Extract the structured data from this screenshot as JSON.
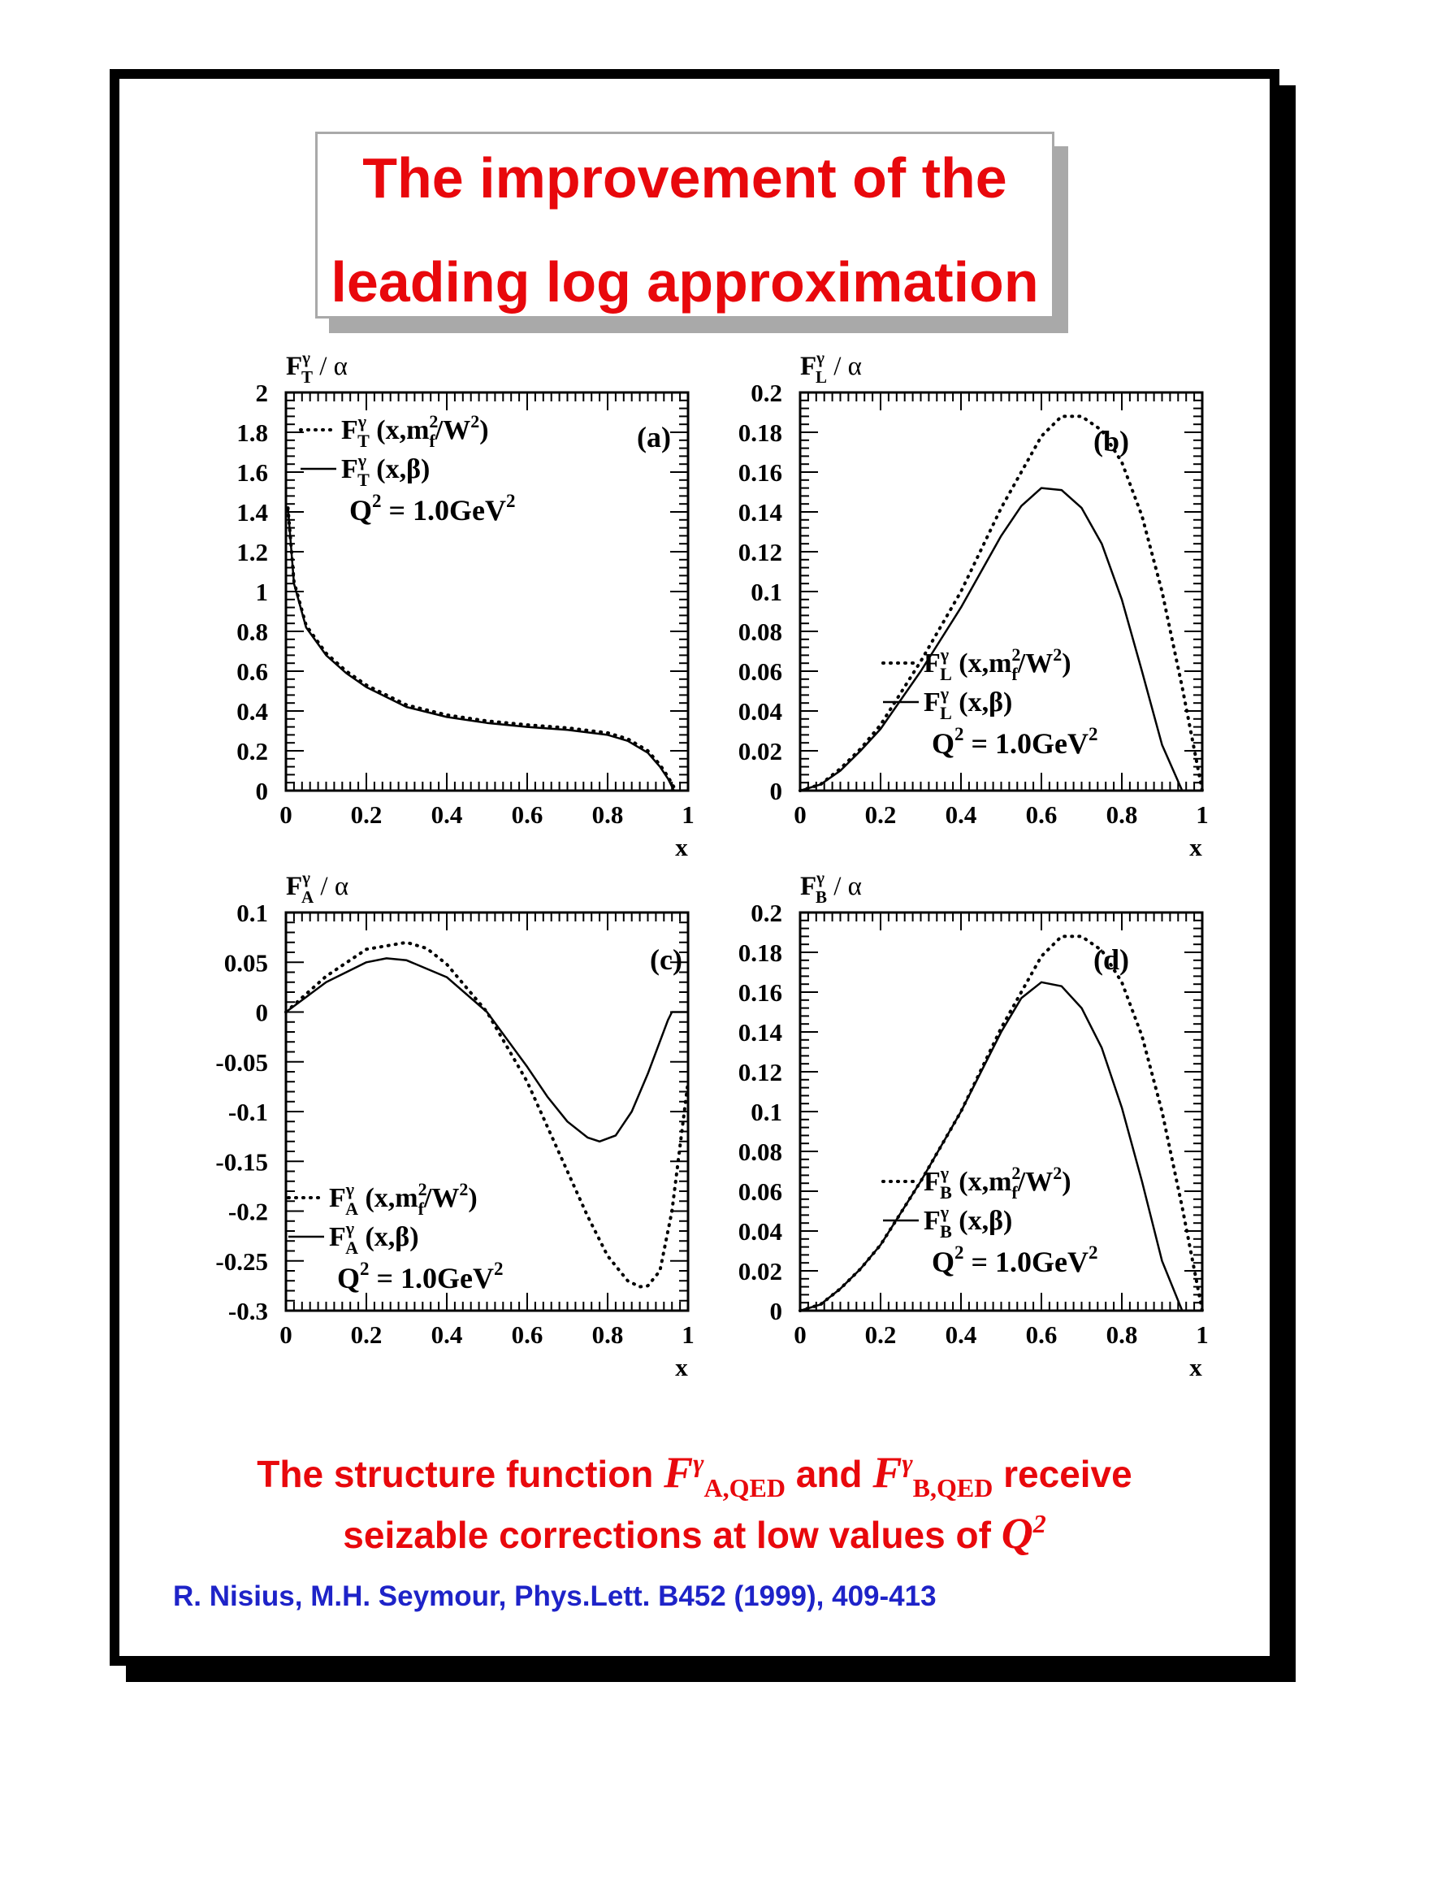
{
  "title": {
    "line1": "The improvement of the",
    "line2": "leading log approximation"
  },
  "colors": {
    "title": "#e8080c",
    "citation": "#1e23c8",
    "ink": "#000000"
  },
  "caption": {
    "line1_pre": "The structure function ",
    "fA": "F",
    "fA_sup": "γ",
    "fA_sub": "A,QED",
    "mid": " and ",
    "fB": "F",
    "fB_sup": "γ",
    "fB_sub": "B,QED",
    "line1_post": " receive",
    "line2_pre": "seizable corrections at low values of ",
    "q": "Q",
    "q_sup": "2"
  },
  "citation": "R. Nisius, M.H. Seymour, Phys.Lett. B452 (1999), 409-413",
  "chart_data": [
    {
      "type": "line",
      "tag": "(a)",
      "ylabel_main": "F",
      "ylabel_sup": "γ",
      "ylabel_sub": "T",
      "ylabel_tail": " / α",
      "xlabel": "x",
      "xlim": [
        0,
        1
      ],
      "ylim": [
        0,
        2
      ],
      "xticks": [
        0,
        0.2,
        0.4,
        0.6,
        0.8,
        1
      ],
      "xticklabels": [
        "0",
        "0.2",
        "0.4",
        "0.6",
        "0.8",
        "1"
      ],
      "yticks": [
        0,
        0.2,
        0.4,
        0.6,
        0.8,
        1,
        1.2,
        1.4,
        1.6,
        1.8,
        2
      ],
      "yticklabels": [
        "0",
        "0.2",
        "0.4",
        "0.6",
        "0.8",
        "1",
        "1.2",
        "1.4",
        "1.6",
        "1.8",
        "2"
      ],
      "legend": {
        "position": "top-left",
        "entries": [
          {
            "style": "dotted",
            "main": "F",
            "sup": "γ",
            "sub": "T",
            "args": "(x,m",
            "arg_sub": "f",
            "arg_sup": "2",
            "args_tail": "/W",
            "tail_sup": "2",
            "close": ")"
          },
          {
            "style": "solid",
            "main": "F",
            "sup": "γ",
            "sub": "T",
            "args": "(x,β)"
          }
        ],
        "q2_label": "Q",
        "q2_sup": "2",
        "q2_value": " = 1.0GeV",
        "q2_unit_sup": "2"
      },
      "series": [
        {
          "style": "dotted",
          "x": [
            0.005,
            0.02,
            0.05,
            0.1,
            0.15,
            0.2,
            0.3,
            0.4,
            0.5,
            0.6,
            0.7,
            0.8,
            0.85,
            0.9,
            0.93,
            0.95,
            0.97
          ],
          "y": [
            1.42,
            1.05,
            0.83,
            0.69,
            0.6,
            0.53,
            0.43,
            0.38,
            0.35,
            0.33,
            0.315,
            0.29,
            0.26,
            0.2,
            0.13,
            0.07,
            0
          ]
        },
        {
          "style": "solid",
          "x": [
            0.005,
            0.02,
            0.05,
            0.1,
            0.15,
            0.2,
            0.3,
            0.4,
            0.5,
            0.6,
            0.7,
            0.8,
            0.85,
            0.9,
            0.93,
            0.95,
            0.965
          ],
          "y": [
            1.42,
            1.04,
            0.82,
            0.68,
            0.59,
            0.52,
            0.42,
            0.37,
            0.34,
            0.32,
            0.305,
            0.28,
            0.25,
            0.19,
            0.12,
            0.06,
            0
          ]
        }
      ]
    },
    {
      "type": "line",
      "tag": "(b)",
      "ylabel_main": "F",
      "ylabel_sup": "γ",
      "ylabel_sub": "L",
      "ylabel_tail": " / α",
      "xlabel": "x",
      "xlim": [
        0,
        1
      ],
      "ylim": [
        0,
        0.2
      ],
      "xticks": [
        0,
        0.2,
        0.4,
        0.6,
        0.8,
        1
      ],
      "xticklabels": [
        "0",
        "0.2",
        "0.4",
        "0.6",
        "0.8",
        "1"
      ],
      "yticks": [
        0,
        0.02,
        0.04,
        0.06,
        0.08,
        0.1,
        0.12,
        0.14,
        0.16,
        0.18,
        0.2
      ],
      "yticklabels": [
        "0",
        "0.02",
        "0.04",
        "0.06",
        "0.08",
        "0.1",
        "0.12",
        "0.14",
        "0.16",
        "0.18",
        "0.2"
      ],
      "legend": {
        "position": "middle-right",
        "entries": [
          {
            "style": "dotted",
            "main": "F",
            "sup": "γ",
            "sub": "L",
            "args": "(x,m",
            "arg_sub": "f",
            "arg_sup": "2",
            "args_tail": "/W",
            "tail_sup": "2",
            "close": ")"
          },
          {
            "style": "solid",
            "main": "F",
            "sup": "γ",
            "sub": "L",
            "args": "(x,β)"
          }
        ],
        "q2_label": "Q",
        "q2_sup": "2",
        "q2_value": " = 1.0GeV",
        "q2_unit_sup": "2"
      },
      "series": [
        {
          "style": "dotted",
          "x": [
            0,
            0.05,
            0.1,
            0.15,
            0.2,
            0.3,
            0.4,
            0.5,
            0.6,
            0.65,
            0.7,
            0.75,
            0.8,
            0.85,
            0.9,
            0.95,
            1.0
          ],
          "y": [
            0,
            0.003,
            0.011,
            0.021,
            0.033,
            0.065,
            0.1,
            0.142,
            0.178,
            0.188,
            0.188,
            0.181,
            0.165,
            0.138,
            0.1,
            0.052,
            0
          ]
        },
        {
          "style": "solid",
          "x": [
            0,
            0.05,
            0.1,
            0.15,
            0.2,
            0.3,
            0.4,
            0.5,
            0.55,
            0.6,
            0.65,
            0.7,
            0.75,
            0.8,
            0.85,
            0.9,
            0.95
          ],
          "y": [
            0,
            0.003,
            0.01,
            0.02,
            0.031,
            0.06,
            0.092,
            0.128,
            0.143,
            0.152,
            0.151,
            0.142,
            0.124,
            0.096,
            0.06,
            0.023,
            0
          ]
        }
      ]
    },
    {
      "type": "line",
      "tag": "(c)",
      "ylabel_main": "F",
      "ylabel_sup": "γ",
      "ylabel_sub": "A",
      "ylabel_tail": " / α",
      "xlabel": "x",
      "xlim": [
        0,
        1
      ],
      "ylim": [
        -0.3,
        0.1
      ],
      "xticks": [
        0,
        0.2,
        0.4,
        0.6,
        0.8,
        1
      ],
      "xticklabels": [
        "0",
        "0.2",
        "0.4",
        "0.6",
        "0.8",
        "1"
      ],
      "yticks": [
        -0.3,
        -0.25,
        -0.2,
        -0.15,
        -0.1,
        -0.05,
        0,
        0.05,
        0.1
      ],
      "yticklabels": [
        "-0.3",
        "-0.25",
        "-0.2",
        "-0.15",
        "-0.1",
        "-0.05",
        "0",
        "0.05",
        "0.1"
      ],
      "legend": {
        "position": "bottom-left",
        "entries": [
          {
            "style": "dotted",
            "main": "F",
            "sup": "γ",
            "sub": "A",
            "args": "(x,m",
            "arg_sub": "f",
            "arg_sup": "2",
            "args_tail": "/W",
            "tail_sup": "2",
            "close": ")"
          },
          {
            "style": "solid",
            "main": "F",
            "sup": "γ",
            "sub": "A",
            "args": "(x,β)"
          }
        ],
        "q2_label": "Q",
        "q2_sup": "2",
        "q2_value": " = 1.0GeV",
        "q2_unit_sup": "2"
      },
      "series": [
        {
          "style": "dotted",
          "x": [
            0,
            0.1,
            0.2,
            0.3,
            0.35,
            0.4,
            0.5,
            0.6,
            0.7,
            0.75,
            0.8,
            0.85,
            0.88,
            0.9,
            0.93,
            0.96,
            1.0
          ],
          "y": [
            0,
            0.036,
            0.063,
            0.07,
            0.064,
            0.048,
            0.0,
            -0.07,
            -0.16,
            -0.205,
            -0.245,
            -0.27,
            -0.276,
            -0.275,
            -0.26,
            -0.2,
            -0.07
          ]
        },
        {
          "style": "solid",
          "x": [
            0,
            0.1,
            0.2,
            0.25,
            0.3,
            0.4,
            0.5,
            0.6,
            0.65,
            0.7,
            0.75,
            0.78,
            0.82,
            0.86,
            0.9,
            0.95,
            0.96,
            1.0
          ],
          "y": [
            0,
            0.03,
            0.05,
            0.054,
            0.052,
            0.035,
            0.0,
            -0.055,
            -0.085,
            -0.11,
            -0.126,
            -0.13,
            -0.124,
            -0.1,
            -0.062,
            -0.008,
            0,
            0
          ]
        }
      ]
    },
    {
      "type": "line",
      "tag": "(d)",
      "ylabel_main": "F",
      "ylabel_sup": "γ",
      "ylabel_sub": "B",
      "ylabel_tail": " / α",
      "xlabel": "x",
      "xlim": [
        0,
        1
      ],
      "ylim": [
        0,
        0.2
      ],
      "xticks": [
        0,
        0.2,
        0.4,
        0.6,
        0.8,
        1
      ],
      "xticklabels": [
        "0",
        "0.2",
        "0.4",
        "0.6",
        "0.8",
        "1"
      ],
      "yticks": [
        0,
        0.02,
        0.04,
        0.06,
        0.08,
        0.1,
        0.12,
        0.14,
        0.16,
        0.18,
        0.2
      ],
      "yticklabels": [
        "0",
        "0.02",
        "0.04",
        "0.06",
        "0.08",
        "0.1",
        "0.12",
        "0.14",
        "0.16",
        "0.18",
        "0.2"
      ],
      "legend": {
        "position": "middle-right",
        "entries": [
          {
            "style": "dotted",
            "main": "F",
            "sup": "γ",
            "sub": "B",
            "args": "(x,m",
            "arg_sub": "f",
            "arg_sup": "2",
            "args_tail": "/W",
            "tail_sup": "2",
            "close": ")"
          },
          {
            "style": "solid",
            "main": "F",
            "sup": "γ",
            "sub": "B",
            "args": "(x,β)"
          }
        ],
        "q2_label": "Q",
        "q2_sup": "2",
        "q2_value": " = 1.0GeV",
        "q2_unit_sup": "2"
      },
      "series": [
        {
          "style": "dotted",
          "x": [
            0,
            0.05,
            0.1,
            0.15,
            0.2,
            0.3,
            0.4,
            0.5,
            0.6,
            0.65,
            0.7,
            0.75,
            0.8,
            0.85,
            0.9,
            0.95,
            1.0
          ],
          "y": [
            0,
            0.003,
            0.011,
            0.021,
            0.033,
            0.065,
            0.1,
            0.142,
            0.178,
            0.188,
            0.188,
            0.181,
            0.165,
            0.138,
            0.1,
            0.052,
            0
          ]
        },
        {
          "style": "solid",
          "x": [
            0,
            0.05,
            0.1,
            0.15,
            0.2,
            0.3,
            0.4,
            0.5,
            0.55,
            0.6,
            0.65,
            0.7,
            0.75,
            0.8,
            0.85,
            0.9,
            0.95
          ],
          "y": [
            0,
            0.003,
            0.011,
            0.021,
            0.033,
            0.065,
            0.1,
            0.14,
            0.157,
            0.165,
            0.163,
            0.152,
            0.132,
            0.102,
            0.065,
            0.025,
            0
          ]
        }
      ]
    }
  ]
}
